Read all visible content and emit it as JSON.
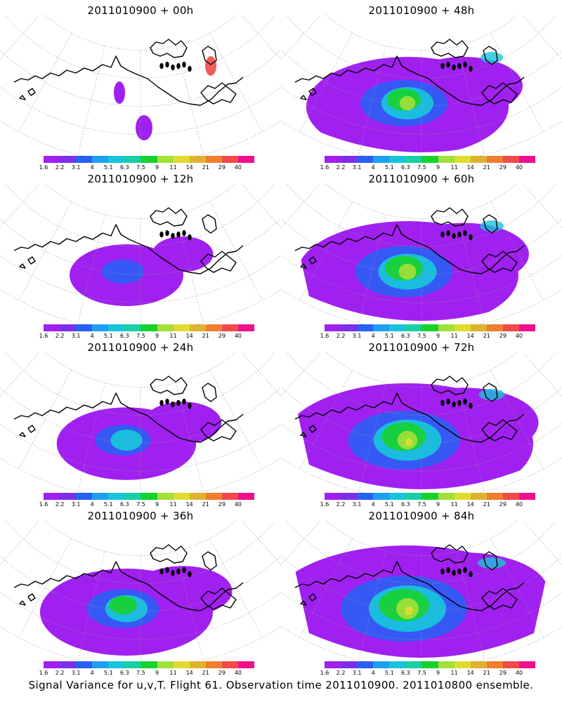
{
  "panels": [
    {
      "title": "2011010900 + 00h",
      "level": 0.05
    },
    {
      "title": "2011010900 + 48h",
      "level": 0.6
    },
    {
      "title": "2011010900 + 12h",
      "level": 0.15
    },
    {
      "title": "2011010900 + 60h",
      "level": 0.7
    },
    {
      "title": "2011010900 + 24h",
      "level": 0.28
    },
    {
      "title": "2011010900 + 72h",
      "level": 0.85
    },
    {
      "title": "2011010900 + 36h",
      "level": 0.45
    },
    {
      "title": "2011010900 + 84h",
      "level": 1.0
    }
  ],
  "colorbar": {
    "labels": [
      "1.6",
      "2.2",
      "3.1",
      "4",
      "5.1",
      "6.3",
      "7.5",
      "9",
      "11",
      "14",
      "21",
      "29",
      "40"
    ],
    "colors": [
      "#a020f0",
      "#7d2fe6",
      "#2a5ff5",
      "#1e9ff0",
      "#19c3dc",
      "#19cfa3",
      "#17d22c",
      "#a4e03a",
      "#e0dc2f",
      "#e0b22f",
      "#f07e2f",
      "#f04a48",
      "#f00f8c"
    ]
  },
  "caption": "Signal Variance for u,v,T. Flight 61. Observation time 2011010900. 2011010800 ensemble."
}
